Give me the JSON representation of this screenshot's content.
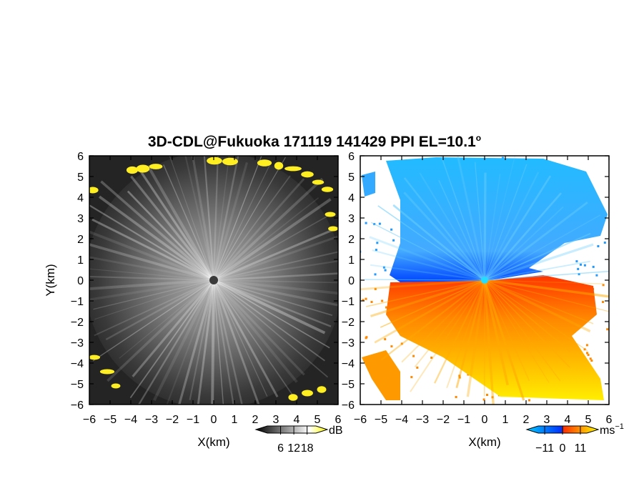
{
  "figure": {
    "title_main": "3D-CDL@Fukuoka 171119 141429 PPI EL=10.1",
    "title_sup": "o"
  },
  "chart_data": [
    {
      "type": "heatmap",
      "panel": "intensity",
      "xlabel": "X(km)",
      "ylabel": "Y(km)",
      "xlim": [
        -6,
        6
      ],
      "ylim": [
        -6,
        6
      ],
      "xticks": [
        "−6",
        "−5",
        "−4",
        "−3",
        "−2",
        "−1",
        "0",
        "1",
        "2",
        "3",
        "4",
        "5",
        "6"
      ],
      "yticks": [
        "6",
        "5",
        "4",
        "3",
        "2",
        "1",
        "0",
        "−1",
        "−2",
        "−3",
        "−4",
        "−5",
        "−6"
      ],
      "colorbar": {
        "unit": "dB",
        "ticks": [
          "6",
          "12",
          "18"
        ],
        "range": [
          0,
          22
        ],
        "colors": [
          "#000000",
          "#ffffff",
          "#ffff00"
        ]
      }
    },
    {
      "type": "heatmap",
      "panel": "radial-velocity",
      "xlabel": "X(km)",
      "ylabel": "",
      "xlim": [
        -6,
        6
      ],
      "ylim": [
        -6,
        6
      ],
      "xticks": [
        "−6",
        "−5",
        "−4",
        "−3",
        "−2",
        "−1",
        "0",
        "1",
        "2",
        "3",
        "4",
        "5",
        "6"
      ],
      "yticks": [
        "6",
        "5",
        "4",
        "3",
        "2",
        "1",
        "0",
        "−1",
        "−2",
        "−3",
        "−4",
        "−5",
        "−6"
      ],
      "colorbar": {
        "unit": "ms",
        "unit_sup": "−1",
        "ticks": [
          "−11",
          "0",
          "11"
        ],
        "range": [
          -15,
          15
        ],
        "colors": [
          "#00ccff",
          "#0033ff",
          "#ff3300",
          "#ffff00"
        ]
      }
    }
  ]
}
